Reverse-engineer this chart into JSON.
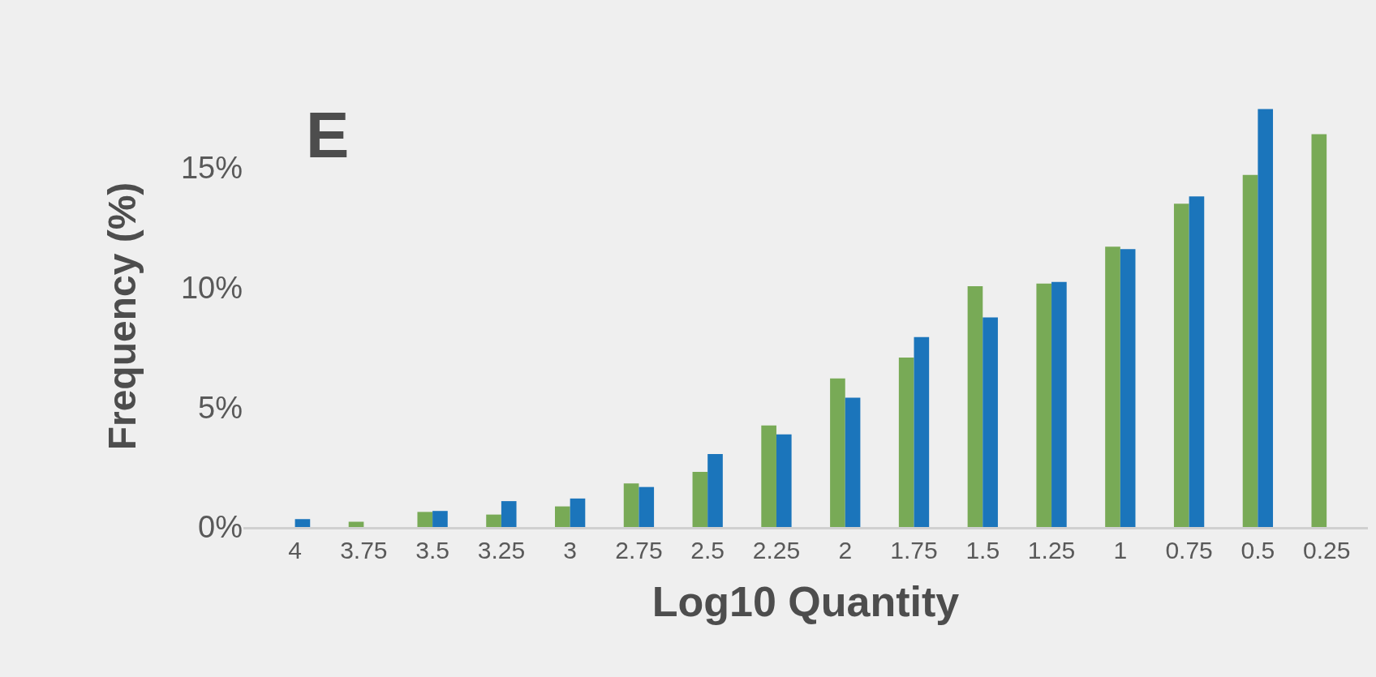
{
  "chart_data": {
    "type": "bar",
    "categories": [
      "4",
      "3.75",
      "3.5",
      "3.25",
      "3",
      "2.75",
      "2.5",
      "2.25",
      "2",
      "1.75",
      "1.5",
      "1.25",
      "1",
      "0.75",
      "0.5",
      "0.25"
    ],
    "series": [
      {
        "color": "#78aa56",
        "values": [
          0,
          0.22,
          0.63,
          0.52,
          0.86,
          1.82,
          2.3,
          4.24,
          6.2,
          7.07,
          10.05,
          10.16,
          11.7,
          13.5,
          14.7,
          16.4
        ]
      },
      {
        "color": "#1b75bb",
        "values": [
          0.33,
          0,
          0.67,
          1.08,
          1.19,
          1.67,
          3.05,
          3.87,
          5.4,
          7.93,
          8.75,
          10.23,
          11.6,
          13.8,
          17.45,
          null
        ]
      }
    ],
    "xlabel": "Log10 Quantity",
    "ylabel": "Frequency (%)",
    "annotations": [
      "E"
    ],
    "ylim": [
      0,
      17.6
    ],
    "yticks": [
      {
        "value": 0,
        "label": "0%"
      },
      {
        "value": 5,
        "label": "5%"
      },
      {
        "value": 10,
        "label": "10%"
      },
      {
        "value": 15,
        "label": "15%"
      }
    ],
    "stacked": false
  }
}
